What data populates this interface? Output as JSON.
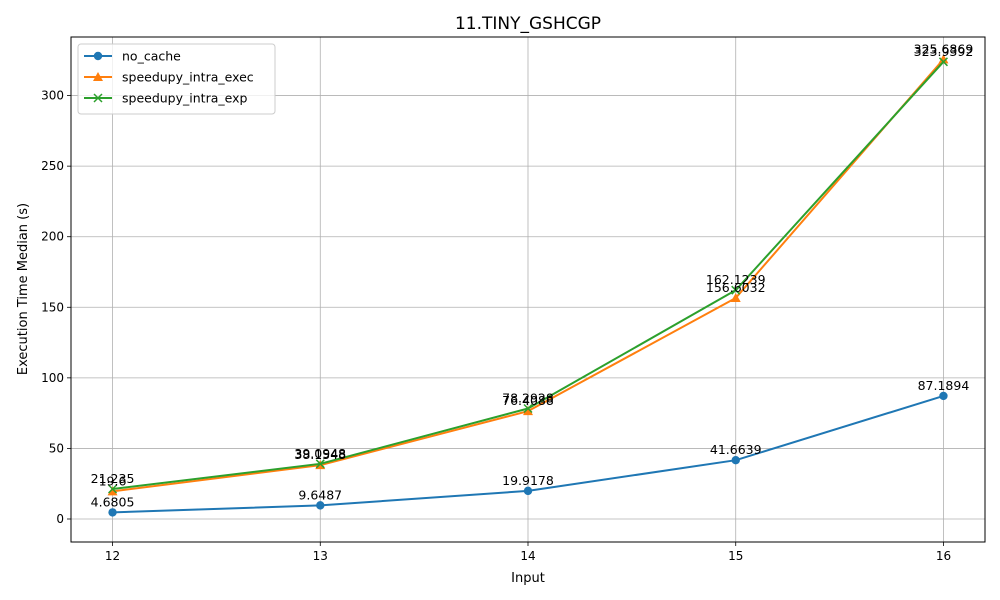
{
  "chart_data": {
    "type": "line",
    "title": "11.TINY_GSHCGP",
    "xlabel": "Input",
    "ylabel": "Execution Time Median (s)",
    "x": [
      12,
      13,
      14,
      15,
      16
    ],
    "xlim": [
      11.8,
      16.2
    ],
    "ylim": [
      -16.3,
      341.5
    ],
    "xticks": [
      12,
      13,
      14,
      15,
      16
    ],
    "yticks": [
      0,
      50,
      100,
      150,
      200,
      250,
      300
    ],
    "grid": true,
    "legend_position": "upper-left",
    "series": [
      {
        "name": "no_cache",
        "color": "#1f77b4",
        "marker": "circle",
        "values": [
          4.6805,
          9.6487,
          19.9178,
          41.6639,
          87.1894
        ],
        "labels": [
          "4.6805",
          "9.6487",
          "19.9178",
          "41.6639",
          "87.1894"
        ]
      },
      {
        "name": "speedupy_intra_exec",
        "color": "#ff7f0e",
        "marker": "triangle",
        "values": [
          19.6,
          38.1548,
          76.4088,
          156.6032,
          325.6869
        ],
        "labels": [
          "19.6",
          "38.1548",
          "76.4088",
          "156.6032",
          "325.6869"
        ]
      },
      {
        "name": "speedupy_intra_exp",
        "color": "#2ca02c",
        "marker": "x",
        "values": [
          21.235,
          39.0948,
          78.2928,
          162.1239,
          323.9392
        ],
        "labels": [
          "21.235",
          "39.0948",
          "78.2928",
          "162.1239",
          "323.9392"
        ]
      }
    ]
  }
}
